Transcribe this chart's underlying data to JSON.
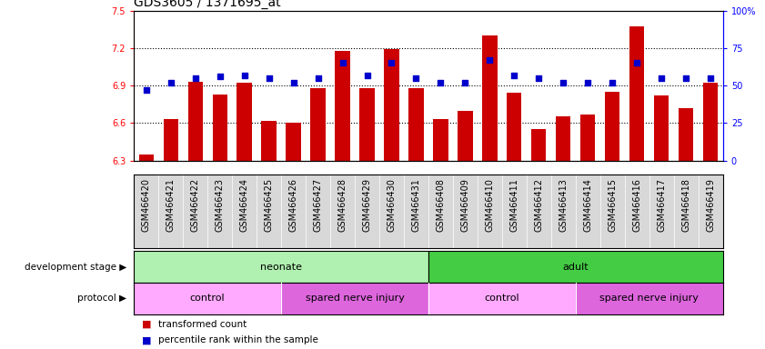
{
  "title": "GDS3605 / 1371695_at",
  "samples": [
    "GSM466420",
    "GSM466421",
    "GSM466422",
    "GSM466423",
    "GSM466424",
    "GSM466425",
    "GSM466426",
    "GSM466427",
    "GSM466428",
    "GSM466429",
    "GSM466430",
    "GSM466431",
    "GSM466408",
    "GSM466409",
    "GSM466410",
    "GSM466411",
    "GSM466412",
    "GSM466413",
    "GSM466414",
    "GSM466415",
    "GSM466416",
    "GSM466417",
    "GSM466418",
    "GSM466419"
  ],
  "transformed_count": [
    6.35,
    6.63,
    6.93,
    6.83,
    6.92,
    6.62,
    6.6,
    6.88,
    7.18,
    6.88,
    7.19,
    6.88,
    6.63,
    6.7,
    7.3,
    6.84,
    6.55,
    6.65,
    6.67,
    6.85,
    7.37,
    6.82,
    6.72,
    6.92
  ],
  "percentile_rank": [
    47,
    52,
    55,
    56,
    57,
    55,
    52,
    55,
    65,
    57,
    65,
    55,
    52,
    52,
    67,
    57,
    55,
    52,
    52,
    52,
    65,
    55,
    55,
    55
  ],
  "ylim_left": [
    6.3,
    7.5
  ],
  "ylim_right": [
    0,
    100
  ],
  "yticks_left": [
    6.3,
    6.6,
    6.9,
    7.2,
    7.5
  ],
  "yticks_right": [
    0,
    25,
    50,
    75,
    100
  ],
  "ytick_labels_right": [
    "0",
    "25",
    "50",
    "75",
    "100%"
  ],
  "hlines": [
    6.6,
    6.9,
    7.2
  ],
  "bar_color": "#cc0000",
  "dot_color": "#0000cc",
  "development_stage_groups": [
    {
      "label": "neonate",
      "start": 0,
      "end": 12,
      "color": "#b0f0b0"
    },
    {
      "label": "adult",
      "start": 12,
      "end": 24,
      "color": "#44cc44"
    }
  ],
  "protocol_groups": [
    {
      "label": "control",
      "start": 0,
      "end": 6,
      "color": "#ffaaff"
    },
    {
      "label": "spared nerve injury",
      "start": 6,
      "end": 12,
      "color": "#dd66dd"
    },
    {
      "label": "control",
      "start": 12,
      "end": 18,
      "color": "#ffaaff"
    },
    {
      "label": "spared nerve injury",
      "start": 18,
      "end": 24,
      "color": "#dd66dd"
    }
  ],
  "legend_items": [
    {
      "label": "transformed count",
      "color": "#cc0000"
    },
    {
      "label": "percentile rank within the sample",
      "color": "#0000cc"
    }
  ],
  "title_fontsize": 10,
  "tick_fontsize": 7,
  "label_fontsize": 8,
  "bar_width": 0.6,
  "xtick_bg_color": "#d8d8d8"
}
